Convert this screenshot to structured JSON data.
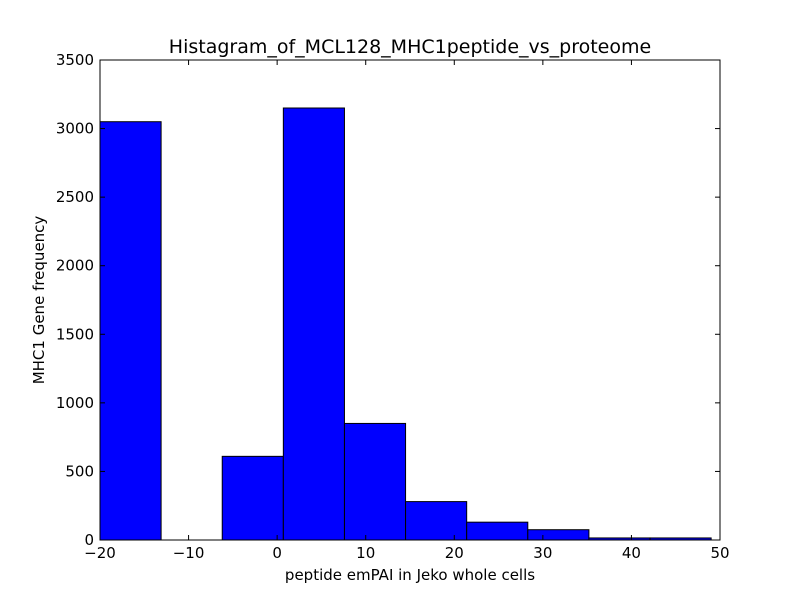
{
  "chart_data": {
    "type": "bar",
    "title": "Histagram_of_MCL128_MHC1peptide_vs_proteome",
    "xlabel": "peptide emPAI in Jeko whole cells",
    "ylabel": "MHC1 Gene frequency",
    "xlim": [
      -20,
      50
    ],
    "ylim": [
      0,
      3500
    ],
    "xticks": [
      -20,
      -10,
      0,
      10,
      20,
      30,
      40,
      50
    ],
    "xtick_labels": [
      "−20",
      "−10",
      "0",
      "10",
      "20",
      "30",
      "40",
      "50"
    ],
    "yticks": [
      0,
      500,
      1000,
      1500,
      2000,
      2500,
      3000,
      3500
    ],
    "ytick_labels": [
      "0",
      "500",
      "1000",
      "1500",
      "2000",
      "2500",
      "3000",
      "3500"
    ],
    "bin_edges": [
      -20,
      -13.1,
      -6.2,
      0.7,
      7.6,
      14.5,
      21.4,
      28.3,
      35.2,
      42.1,
      49
    ],
    "values": [
      3050,
      0,
      610,
      3150,
      850,
      280,
      130,
      75,
      15,
      15
    ],
    "bar_color": "#0000ff",
    "edge_color": "#000000",
    "grid": false,
    "legend": "none"
  }
}
